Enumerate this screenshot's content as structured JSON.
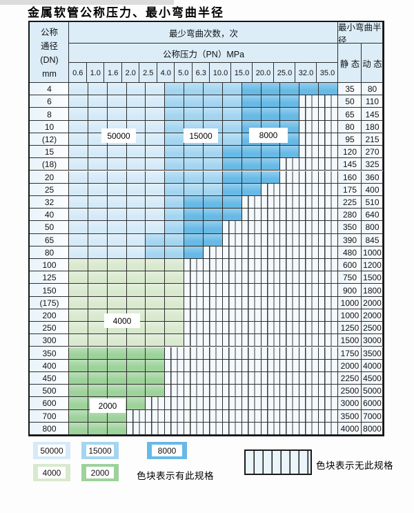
{
  "title": "金属软管公称压力、最小弯曲半径",
  "table": {
    "header": {
      "dn_lines": [
        "公称",
        "通径",
        "(DN)",
        "mm"
      ],
      "bend_cycles": "最少弯曲次数，次",
      "pressure": "公称压力（PN）MPa",
      "pressure_values": [
        "0.6",
        "1.0",
        "1.6",
        "2.0",
        "2.5",
        "4.0",
        "5.0",
        "6.3",
        "10.0",
        "15.0",
        "20.0",
        "25.0",
        "32.0",
        "35.0"
      ],
      "radius": "最小弯曲半径",
      "static_label": "静 态",
      "dynamic_label": "动 态"
    },
    "rows": [
      {
        "dn": "4",
        "static": "35",
        "dynamic": "80",
        "spans": [
          [
            "L",
            1,
            5
          ],
          [
            "M",
            6,
            9
          ],
          [
            "D",
            10,
            14
          ]
        ]
      },
      {
        "dn": "6",
        "static": "50",
        "dynamic": "110",
        "spans": [
          [
            "L",
            1,
            5
          ],
          [
            "M",
            6,
            9
          ],
          [
            "D",
            10,
            12
          ]
        ]
      },
      {
        "dn": "8",
        "static": "65",
        "dynamic": "145",
        "spans": [
          [
            "L",
            1,
            5
          ],
          [
            "M",
            6,
            9
          ],
          [
            "D",
            10,
            12
          ]
        ]
      },
      {
        "dn": "10",
        "static": "80",
        "dynamic": "180",
        "spans": [
          [
            "L",
            1,
            5
          ],
          [
            "M",
            6,
            9
          ],
          [
            "D",
            10,
            12
          ]
        ]
      },
      {
        "dn": "(12)",
        "static": "95",
        "dynamic": "215",
        "spans": [
          [
            "L",
            1,
            5
          ],
          [
            "M",
            6,
            9
          ],
          [
            "D",
            10,
            12
          ]
        ]
      },
      {
        "dn": "15",
        "static": "120",
        "dynamic": "270",
        "spans": [
          [
            "L",
            1,
            5
          ],
          [
            "M",
            6,
            8
          ],
          [
            "D",
            9,
            12
          ]
        ]
      },
      {
        "dn": "(18)",
        "static": "145",
        "dynamic": "325",
        "spans": [
          [
            "L",
            1,
            5
          ],
          [
            "M",
            6,
            8
          ],
          [
            "D",
            9,
            11
          ]
        ]
      },
      {
        "dn": "20",
        "static": "160",
        "dynamic": "360",
        "spans": [
          [
            "L",
            1,
            5
          ],
          [
            "M",
            6,
            8
          ],
          [
            "D",
            9,
            11
          ]
        ]
      },
      {
        "dn": "25",
        "static": "175",
        "dynamic": "400",
        "spans": [
          [
            "L",
            1,
            5
          ],
          [
            "M",
            6,
            8
          ],
          [
            "D",
            9,
            10
          ]
        ]
      },
      {
        "dn": "32",
        "static": "225",
        "dynamic": "510",
        "spans": [
          [
            "L",
            1,
            5
          ],
          [
            "M",
            6,
            6
          ],
          [
            "D",
            7,
            9
          ]
        ]
      },
      {
        "dn": "40",
        "static": "280",
        "dynamic": "640",
        "spans": [
          [
            "L",
            1,
            5
          ],
          [
            "M",
            6,
            6
          ],
          [
            "D",
            7,
            9
          ]
        ]
      },
      {
        "dn": "50",
        "static": "350",
        "dynamic": "800",
        "spans": [
          [
            "L",
            1,
            5
          ],
          [
            "M",
            6,
            6
          ],
          [
            "D",
            7,
            8
          ]
        ]
      },
      {
        "dn": "65",
        "static": "390",
        "dynamic": "845",
        "spans": [
          [
            "L",
            1,
            4
          ],
          [
            "M",
            5,
            6
          ],
          [
            "D",
            7,
            8
          ]
        ]
      },
      {
        "dn": "80",
        "static": "480",
        "dynamic": "1000",
        "spans": [
          [
            "L",
            1,
            4
          ],
          [
            "M",
            5,
            6
          ],
          [
            "D",
            7,
            7
          ]
        ]
      },
      {
        "dn": "100",
        "static": "600",
        "dynamic": "1200",
        "spans": [
          [
            "G4",
            1,
            6
          ]
        ]
      },
      {
        "dn": "125",
        "static": "750",
        "dynamic": "1500",
        "spans": [
          [
            "G4",
            1,
            6
          ]
        ]
      },
      {
        "dn": "150",
        "static": "900",
        "dynamic": "1800",
        "spans": [
          [
            "G4",
            1,
            6
          ]
        ]
      },
      {
        "dn": "(175)",
        "static": "1000",
        "dynamic": "2000",
        "spans": [
          [
            "G4",
            1,
            6
          ]
        ]
      },
      {
        "dn": "200",
        "static": "1000",
        "dynamic": "2000",
        "spans": [
          [
            "G4",
            1,
            6
          ]
        ]
      },
      {
        "dn": "250",
        "static": "1250",
        "dynamic": "2500",
        "spans": [
          [
            "G4",
            1,
            6
          ]
        ]
      },
      {
        "dn": "300",
        "static": "1500",
        "dynamic": "3000",
        "spans": [
          [
            "G4",
            1,
            6
          ]
        ]
      },
      {
        "dn": "350",
        "static": "1750",
        "dynamic": "3500",
        "spans": [
          [
            "G2",
            1,
            5
          ]
        ]
      },
      {
        "dn": "400",
        "static": "2000",
        "dynamic": "4000",
        "spans": [
          [
            "G2",
            1,
            5
          ]
        ]
      },
      {
        "dn": "450",
        "static": "2250",
        "dynamic": "4500",
        "spans": [
          [
            "G2",
            1,
            5
          ]
        ]
      },
      {
        "dn": "500",
        "static": "2500",
        "dynamic": "5000",
        "spans": [
          [
            "G2",
            1,
            5
          ]
        ]
      },
      {
        "dn": "600",
        "static": "3000",
        "dynamic": "6000",
        "spans": [
          [
            "G2",
            1,
            4
          ]
        ]
      },
      {
        "dn": "700",
        "static": "3500",
        "dynamic": "7000",
        "spans": [
          [
            "G2",
            1,
            3
          ]
        ]
      },
      {
        "dn": "800",
        "static": "4000",
        "dynamic": "8000",
        "spans": [
          [
            "G2",
            1,
            3
          ]
        ]
      }
    ]
  },
  "overlay_labels": {
    "v50000": "50000",
    "v15000": "15000",
    "v8000": "8000",
    "v4000": "4000",
    "v2000": "2000"
  },
  "legend": {
    "present_note": "色块表示有此规格",
    "absent_note": "色块表示无此规格"
  },
  "colors": {
    "cycles_50000": "#d5eaf8",
    "cycles_15000": "#a3d5f1",
    "cycles_8000": "#67b9e6",
    "cycles_4000": "#d8e9ce",
    "cycles_2000": "#9dd29a"
  }
}
